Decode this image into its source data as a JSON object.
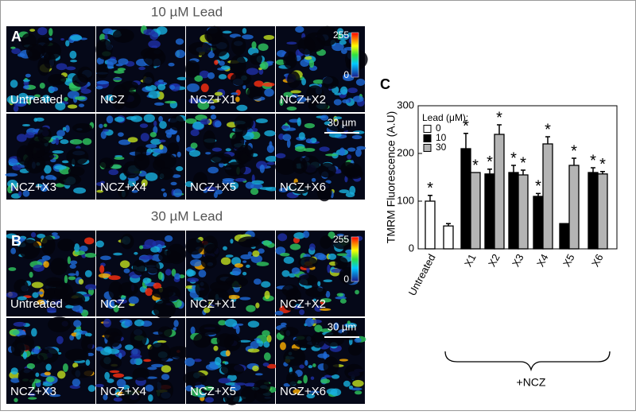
{
  "panels": [
    {
      "letter": "A",
      "title": "10 µM Lead",
      "images": [
        "Untreated",
        "NCZ",
        "NCZ+X1",
        "NCZ+X2",
        "NCZ+X3",
        "NCZ+X4",
        "NCZ+X5",
        "NCZ+X6"
      ],
      "colorbar": {
        "max": "255",
        "min": "0"
      },
      "scale_bar": "30 µm"
    },
    {
      "letter": "B",
      "title": "30 µM Lead",
      "images": [
        "Untreated",
        "NCZ",
        "NCZ+X1",
        "NCZ+X2",
        "NCZ+X3",
        "NCZ+X4",
        "NCZ+X5",
        "NCZ+X6"
      ],
      "colorbar": {
        "max": "255",
        "min": "0"
      },
      "scale_bar": "30 µm"
    }
  ],
  "chart_data": {
    "type": "bar",
    "panel_letter": "C",
    "ylabel": "TMRM Fluorescence (A.U)",
    "categories": [
      "Untreated",
      null,
      "X1",
      "X2",
      "X3",
      "X4",
      "X5",
      "X6"
    ],
    "group_label": "+NCZ",
    "legend_title": "Lead (μM):",
    "series": [
      {
        "name": "0",
        "color": "#ffffff",
        "values": [
          100,
          48,
          null,
          null,
          null,
          null,
          null,
          null
        ],
        "errors": [
          12,
          5,
          null,
          null,
          null,
          null,
          null,
          null
        ],
        "stars": [
          "*",
          null,
          null,
          null,
          null,
          null,
          null,
          null
        ]
      },
      {
        "name": "10",
        "color": "#000000",
        "values": [
          null,
          null,
          210,
          157,
          160,
          110,
          53,
          160
        ],
        "errors": [
          null,
          null,
          32,
          10,
          15,
          6,
          null,
          10
        ],
        "stars": [
          null,
          null,
          "*",
          "*",
          "*",
          "*",
          null,
          "*"
        ]
      },
      {
        "name": "30",
        "color": "#b4b4b4",
        "values": [
          null,
          null,
          160,
          240,
          155,
          220,
          175,
          157
        ],
        "errors": [
          null,
          null,
          null,
          20,
          10,
          15,
          15,
          5
        ],
        "stars": [
          null,
          null,
          "*",
          "*",
          "*",
          "*",
          "*",
          "*"
        ]
      }
    ],
    "ylim": [
      0,
      300
    ],
    "yticks": [
      0,
      100,
      200,
      300
    ]
  }
}
